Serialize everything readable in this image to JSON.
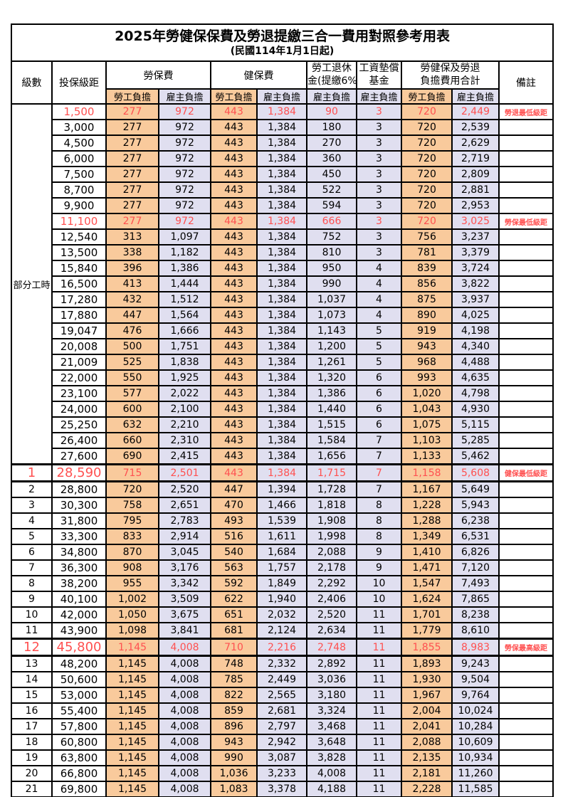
{
  "title": "2025年勞健保保費及勞退提繳三合一費用對照參考用表",
  "subtitle": "(民國114年1月1日起)",
  "header": {
    "level": "級數",
    "bracket": "投保級距",
    "labor_insurance": "勞保費",
    "health_insurance": "健保費",
    "pension_line1": "勞工退休",
    "pension_line2": "金(提繳6%)",
    "wage_fund_line1": "工資墊償",
    "wage_fund_line2": "基金",
    "total_line1": "勞健保及勞退",
    "total_line2": "負擔費用合計",
    "remark": "備註",
    "employee_share": "勞工負擔",
    "employer_share": "雇主負擔"
  },
  "part_time_label": "部分工時",
  "part_time_rowspan": 23,
  "colors": {
    "employee_col_bg": "#F9CA9C",
    "employer_col_bg": "#E0DFF0",
    "highlight_text": "#FF5050",
    "grid": "#000000"
  },
  "rows": [
    {
      "level": "",
      "bracket": "1,500",
      "values": [
        "277",
        "972",
        "443",
        "1,384",
        "90",
        "3",
        "720",
        "2,449"
      ],
      "remark": "勞退最低級距",
      "red": true,
      "big": false
    },
    {
      "level": "",
      "bracket": "3,000",
      "values": [
        "277",
        "972",
        "443",
        "1,384",
        "180",
        "3",
        "720",
        "2,539"
      ],
      "remark": "",
      "red": false,
      "big": false
    },
    {
      "level": "",
      "bracket": "4,500",
      "values": [
        "277",
        "972",
        "443",
        "1,384",
        "270",
        "3",
        "720",
        "2,629"
      ],
      "remark": "",
      "red": false,
      "big": false
    },
    {
      "level": "",
      "bracket": "6,000",
      "values": [
        "277",
        "972",
        "443",
        "1,384",
        "360",
        "3",
        "720",
        "2,719"
      ],
      "remark": "",
      "red": false,
      "big": false
    },
    {
      "level": "",
      "bracket": "7,500",
      "values": [
        "277",
        "972",
        "443",
        "1,384",
        "450",
        "3",
        "720",
        "2,809"
      ],
      "remark": "",
      "red": false,
      "big": false
    },
    {
      "level": "",
      "bracket": "8,700",
      "values": [
        "277",
        "972",
        "443",
        "1,384",
        "522",
        "3",
        "720",
        "2,881"
      ],
      "remark": "",
      "red": false,
      "big": false
    },
    {
      "level": "",
      "bracket": "9,900",
      "values": [
        "277",
        "972",
        "443",
        "1,384",
        "594",
        "3",
        "720",
        "2,953"
      ],
      "remark": "",
      "red": false,
      "big": false
    },
    {
      "level": "",
      "bracket": "11,100",
      "values": [
        "277",
        "972",
        "443",
        "1,384",
        "666",
        "3",
        "720",
        "3,025"
      ],
      "remark": "勞保最低級距",
      "red": true,
      "big": false
    },
    {
      "level": "",
      "bracket": "12,540",
      "values": [
        "313",
        "1,097",
        "443",
        "1,384",
        "752",
        "3",
        "756",
        "3,237"
      ],
      "remark": "",
      "red": false,
      "big": false
    },
    {
      "level": "",
      "bracket": "13,500",
      "values": [
        "338",
        "1,182",
        "443",
        "1,384",
        "810",
        "3",
        "781",
        "3,379"
      ],
      "remark": "",
      "red": false,
      "big": false
    },
    {
      "level": "",
      "bracket": "15,840",
      "values": [
        "396",
        "1,386",
        "443",
        "1,384",
        "950",
        "4",
        "839",
        "3,724"
      ],
      "remark": "",
      "red": false,
      "big": false
    },
    {
      "level": "",
      "bracket": "16,500",
      "values": [
        "413",
        "1,444",
        "443",
        "1,384",
        "990",
        "4",
        "856",
        "3,822"
      ],
      "remark": "",
      "red": false,
      "big": false
    },
    {
      "level": "",
      "bracket": "17,280",
      "values": [
        "432",
        "1,512",
        "443",
        "1,384",
        "1,037",
        "4",
        "875",
        "3,937"
      ],
      "remark": "",
      "red": false,
      "big": false
    },
    {
      "level": "",
      "bracket": "17,880",
      "values": [
        "447",
        "1,564",
        "443",
        "1,384",
        "1,073",
        "4",
        "890",
        "4,025"
      ],
      "remark": "",
      "red": false,
      "big": false
    },
    {
      "level": "",
      "bracket": "19,047",
      "values": [
        "476",
        "1,666",
        "443",
        "1,384",
        "1,143",
        "5",
        "919",
        "4,198"
      ],
      "remark": "",
      "red": false,
      "big": false
    },
    {
      "level": "",
      "bracket": "20,008",
      "values": [
        "500",
        "1,751",
        "443",
        "1,384",
        "1,200",
        "5",
        "943",
        "4,340"
      ],
      "remark": "",
      "red": false,
      "big": false
    },
    {
      "level": "",
      "bracket": "21,009",
      "values": [
        "525",
        "1,838",
        "443",
        "1,384",
        "1,261",
        "5",
        "968",
        "4,488"
      ],
      "remark": "",
      "red": false,
      "big": false
    },
    {
      "level": "",
      "bracket": "22,000",
      "values": [
        "550",
        "1,925",
        "443",
        "1,384",
        "1,320",
        "6",
        "993",
        "4,635"
      ],
      "remark": "",
      "red": false,
      "big": false
    },
    {
      "level": "",
      "bracket": "23,100",
      "values": [
        "577",
        "2,022",
        "443",
        "1,384",
        "1,386",
        "6",
        "1,020",
        "4,798"
      ],
      "remark": "",
      "red": false,
      "big": false
    },
    {
      "level": "",
      "bracket": "24,000",
      "values": [
        "600",
        "2,100",
        "443",
        "1,384",
        "1,440",
        "6",
        "1,043",
        "4,930"
      ],
      "remark": "",
      "red": false,
      "big": false
    },
    {
      "level": "",
      "bracket": "25,250",
      "values": [
        "632",
        "2,210",
        "443",
        "1,384",
        "1,515",
        "6",
        "1,075",
        "5,115"
      ],
      "remark": "",
      "red": false,
      "big": false
    },
    {
      "level": "",
      "bracket": "26,400",
      "values": [
        "660",
        "2,310",
        "443",
        "1,384",
        "1,584",
        "7",
        "1,103",
        "5,285"
      ],
      "remark": "",
      "red": false,
      "big": false
    },
    {
      "level": "",
      "bracket": "27,600",
      "values": [
        "690",
        "2,415",
        "443",
        "1,384",
        "1,656",
        "7",
        "1,133",
        "5,462"
      ],
      "remark": "",
      "red": false,
      "big": false
    },
    {
      "level": "1",
      "bracket": "28,590",
      "values": [
        "715",
        "2,501",
        "443",
        "1,384",
        "1,715",
        "7",
        "1,158",
        "5,608"
      ],
      "remark": "健保最低級距",
      "red": true,
      "big": true
    },
    {
      "level": "2",
      "bracket": "28,800",
      "values": [
        "720",
        "2,520",
        "447",
        "1,394",
        "1,728",
        "7",
        "1,167",
        "5,649"
      ],
      "remark": "",
      "red": false,
      "big": false
    },
    {
      "level": "3",
      "bracket": "30,300",
      "values": [
        "758",
        "2,651",
        "470",
        "1,466",
        "1,818",
        "8",
        "1,228",
        "5,943"
      ],
      "remark": "",
      "red": false,
      "big": false
    },
    {
      "level": "4",
      "bracket": "31,800",
      "values": [
        "795",
        "2,783",
        "493",
        "1,539",
        "1,908",
        "8",
        "1,288",
        "6,238"
      ],
      "remark": "",
      "red": false,
      "big": false
    },
    {
      "level": "5",
      "bracket": "33,300",
      "values": [
        "833",
        "2,914",
        "516",
        "1,611",
        "1,998",
        "8",
        "1,349",
        "6,531"
      ],
      "remark": "",
      "red": false,
      "big": false
    },
    {
      "level": "6",
      "bracket": "34,800",
      "values": [
        "870",
        "3,045",
        "540",
        "1,684",
        "2,088",
        "9",
        "1,410",
        "6,826"
      ],
      "remark": "",
      "red": false,
      "big": false
    },
    {
      "level": "7",
      "bracket": "36,300",
      "values": [
        "908",
        "3,176",
        "563",
        "1,757",
        "2,178",
        "9",
        "1,471",
        "7,120"
      ],
      "remark": "",
      "red": false,
      "big": false
    },
    {
      "level": "8",
      "bracket": "38,200",
      "values": [
        "955",
        "3,342",
        "592",
        "1,849",
        "2,292",
        "10",
        "1,547",
        "7,493"
      ],
      "remark": "",
      "red": false,
      "big": false
    },
    {
      "level": "9",
      "bracket": "40,100",
      "values": [
        "1,002",
        "3,509",
        "622",
        "1,940",
        "2,406",
        "10",
        "1,624",
        "7,865"
      ],
      "remark": "",
      "red": false,
      "big": false
    },
    {
      "level": "10",
      "bracket": "42,000",
      "values": [
        "1,050",
        "3,675",
        "651",
        "2,032",
        "2,520",
        "11",
        "1,701",
        "8,238"
      ],
      "remark": "",
      "red": false,
      "big": false
    },
    {
      "level": "11",
      "bracket": "43,900",
      "values": [
        "1,098",
        "3,841",
        "681",
        "2,124",
        "2,634",
        "11",
        "1,779",
        "8,610"
      ],
      "remark": "",
      "red": false,
      "big": false
    },
    {
      "level": "12",
      "bracket": "45,800",
      "values": [
        "1,145",
        "4,008",
        "710",
        "2,216",
        "2,748",
        "11",
        "1,855",
        "8,983"
      ],
      "remark": "勞保最高級距",
      "red": true,
      "big": true
    },
    {
      "level": "13",
      "bracket": "48,200",
      "values": [
        "1,145",
        "4,008",
        "748",
        "2,332",
        "2,892",
        "11",
        "1,893",
        "9,243"
      ],
      "remark": "",
      "red": false,
      "big": false
    },
    {
      "level": "14",
      "bracket": "50,600",
      "values": [
        "1,145",
        "4,008",
        "785",
        "2,449",
        "3,036",
        "11",
        "1,930",
        "9,504"
      ],
      "remark": "",
      "red": false,
      "big": false
    },
    {
      "level": "15",
      "bracket": "53,000",
      "values": [
        "1,145",
        "4,008",
        "822",
        "2,565",
        "3,180",
        "11",
        "1,967",
        "9,764"
      ],
      "remark": "",
      "red": false,
      "big": false
    },
    {
      "level": "16",
      "bracket": "55,400",
      "values": [
        "1,145",
        "4,008",
        "859",
        "2,681",
        "3,324",
        "11",
        "2,004",
        "10,024"
      ],
      "remark": "",
      "red": false,
      "big": false
    },
    {
      "level": "17",
      "bracket": "57,800",
      "values": [
        "1,145",
        "4,008",
        "896",
        "2,797",
        "3,468",
        "11",
        "2,041",
        "10,284"
      ],
      "remark": "",
      "red": false,
      "big": false
    },
    {
      "level": "18",
      "bracket": "60,800",
      "values": [
        "1,145",
        "4,008",
        "943",
        "2,942",
        "3,648",
        "11",
        "2,088",
        "10,609"
      ],
      "remark": "",
      "red": false,
      "big": false
    },
    {
      "level": "19",
      "bracket": "63,800",
      "values": [
        "1,145",
        "4,008",
        "990",
        "3,087",
        "3,828",
        "11",
        "2,135",
        "10,934"
      ],
      "remark": "",
      "red": false,
      "big": false
    },
    {
      "level": "20",
      "bracket": "66,800",
      "values": [
        "1,145",
        "4,008",
        "1,036",
        "3,233",
        "4,008",
        "11",
        "2,181",
        "11,260"
      ],
      "remark": "",
      "red": false,
      "big": false
    },
    {
      "level": "21",
      "bracket": "69,800",
      "values": [
        "1,145",
        "4,008",
        "1,083",
        "3,378",
        "4,188",
        "11",
        "2,228",
        "11,585"
      ],
      "remark": "",
      "red": false,
      "big": false
    }
  ]
}
